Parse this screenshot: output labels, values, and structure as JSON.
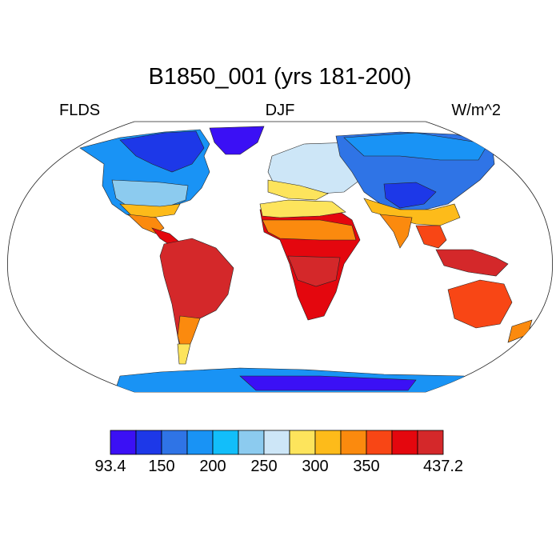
{
  "title": "B1850_001 (yrs 181-200)",
  "left_label": "FLDS",
  "center_label": "DJF",
  "right_label": "W/m^2",
  "colorbar": {
    "colors": [
      "#3b10f5",
      "#1d38e8",
      "#2f74e6",
      "#1993f5",
      "#12befa",
      "#8ccbef",
      "#cde6f7",
      "#fde45c",
      "#fdbb1a",
      "#fb8a0e",
      "#f84615",
      "#e4070e",
      "#d4282a"
    ],
    "labels": [
      {
        "text": "93.4",
        "slot": 0
      },
      {
        "text": "150",
        "slot": 2
      },
      {
        "text": "200",
        "slot": 4
      },
      {
        "text": "250",
        "slot": 6
      },
      {
        "text": "300",
        "slot": 8
      },
      {
        "text": "350",
        "slot": 10
      },
      {
        "text": "437.2",
        "slot": 13
      }
    ]
  }
}
